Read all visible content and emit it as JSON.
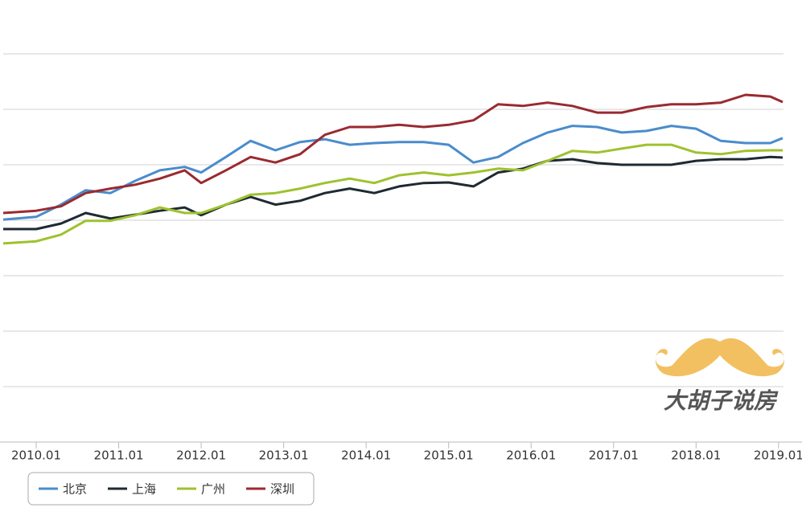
{
  "chart_data": {
    "type": "line",
    "x": [
      2009.6,
      2010.0,
      2010.3,
      2010.6,
      2010.9,
      2011.2,
      2011.5,
      2011.8,
      2012.0,
      2012.3,
      2012.6,
      2012.9,
      2013.2,
      2013.5,
      2013.8,
      2014.1,
      2014.4,
      2014.7,
      2015.0,
      2015.3,
      2015.6,
      2015.9,
      2016.2,
      2016.5,
      2016.8,
      2017.1,
      2017.4,
      2017.7,
      2018.0,
      2018.3,
      2018.6,
      2018.9,
      2019.05
    ],
    "series": [
      {
        "name": "北京",
        "color": "#4a8ccc",
        "values": [
          4.01,
          4.06,
          4.28,
          4.54,
          4.49,
          4.71,
          4.9,
          4.96,
          4.86,
          5.14,
          5.43,
          5.26,
          5.41,
          5.46,
          5.36,
          5.39,
          5.41,
          5.41,
          5.36,
          5.04,
          5.14,
          5.39,
          5.58,
          5.7,
          5.68,
          5.58,
          5.61,
          5.7,
          5.65,
          5.43,
          5.39,
          5.39,
          5.48
        ]
      },
      {
        "name": "上海",
        "color": "#1e2a33",
        "values": [
          3.84,
          3.84,
          3.94,
          4.13,
          4.03,
          4.1,
          4.17,
          4.23,
          4.09,
          4.28,
          4.42,
          4.28,
          4.35,
          4.49,
          4.57,
          4.49,
          4.61,
          4.67,
          4.68,
          4.61,
          4.86,
          4.93,
          5.07,
          5.1,
          5.03,
          5.0,
          5.0,
          5.0,
          5.07,
          5.1,
          5.1,
          5.14,
          5.13
        ]
      },
      {
        "name": "广州",
        "color": "#9ec22e",
        "values": [
          3.58,
          3.62,
          3.74,
          3.99,
          3.99,
          4.09,
          4.23,
          4.13,
          4.13,
          4.28,
          4.46,
          4.49,
          4.57,
          4.67,
          4.75,
          4.67,
          4.81,
          4.86,
          4.81,
          4.86,
          4.93,
          4.9,
          5.07,
          5.25,
          5.22,
          5.29,
          5.36,
          5.36,
          5.22,
          5.19,
          5.25,
          5.26,
          5.26
        ]
      },
      {
        "name": "深圳",
        "color": "#9a2a30",
        "values": [
          4.13,
          4.17,
          4.25,
          4.49,
          4.57,
          4.64,
          4.75,
          4.9,
          4.67,
          4.9,
          5.14,
          5.04,
          5.19,
          5.54,
          5.68,
          5.68,
          5.72,
          5.68,
          5.72,
          5.8,
          6.09,
          6.06,
          6.12,
          6.06,
          5.94,
          5.94,
          6.04,
          6.09,
          6.09,
          6.12,
          6.26,
          6.23,
          6.13
        ]
      }
    ],
    "xlim": [
      2009.6,
      2019.06
    ],
    "xticks": [
      {
        "value": 2010,
        "label": "2010.01"
      },
      {
        "value": 2011,
        "label": "2011.01"
      },
      {
        "value": 2012,
        "label": "2012.01"
      },
      {
        "value": 2013,
        "label": "2013.01"
      },
      {
        "value": 2014,
        "label": "2014.01"
      },
      {
        "value": 2015,
        "label": "2015.01"
      },
      {
        "value": 2016,
        "label": "2016.01"
      },
      {
        "value": 2017,
        "label": "2017.01"
      },
      {
        "value": 2018,
        "label": "2018.01"
      },
      {
        "value": 2019,
        "label": "2019.01"
      }
    ],
    "ylim": [
      0,
      7.97
    ],
    "yticks": [
      1,
      2,
      3,
      4,
      5,
      6,
      7
    ],
    "grid": true,
    "legend": "bottom-left",
    "watermark": "大胡子说房"
  }
}
